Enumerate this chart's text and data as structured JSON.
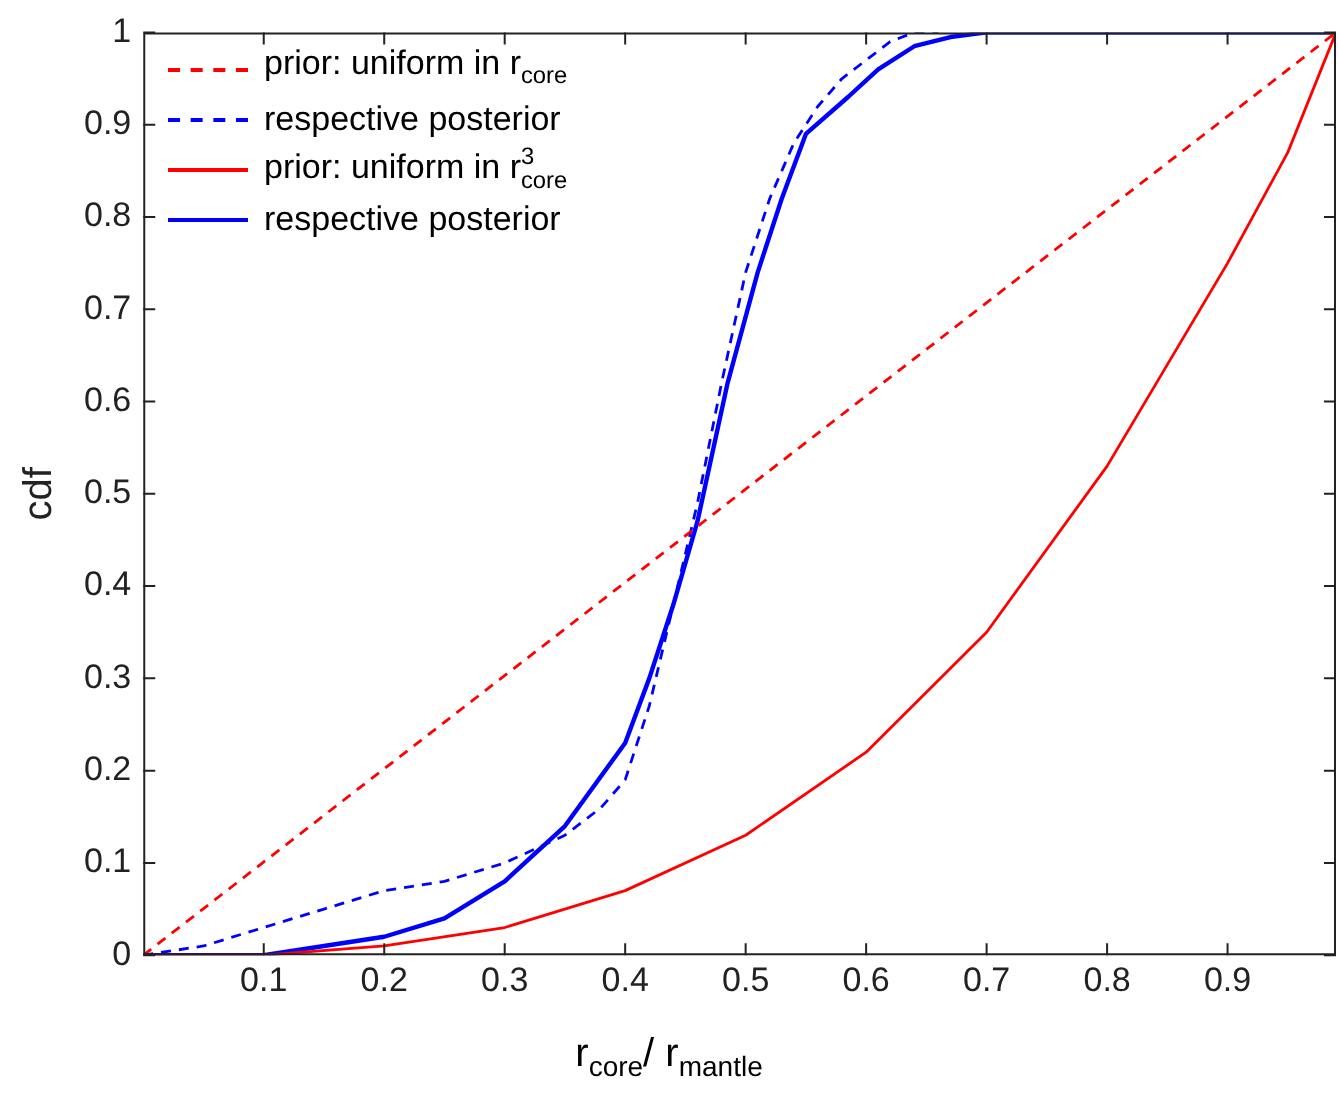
{
  "chart_data": {
    "type": "line",
    "xlabel": "r$_{core}$/ r$_{mantle}$",
    "ylabel": "cdf",
    "xlim": [
      0,
      0.99
    ],
    "ylim": [
      0,
      1
    ],
    "xticks": [
      0.1,
      0.2,
      0.3,
      0.4,
      0.5,
      0.6,
      0.7,
      0.8,
      0.9
    ],
    "yticks": [
      0,
      0.1,
      0.2,
      0.3,
      0.4,
      0.5,
      0.6,
      0.7,
      0.8,
      0.9,
      1
    ],
    "grid": false,
    "legend": "top left",
    "marker": "none",
    "series": [
      {
        "name": "prior: uniform in r$_{core}$",
        "color": "#ff0000",
        "line_style": "dashed",
        "x": [
          0,
          0.99
        ],
        "values": [
          0,
          1
        ]
      },
      {
        "name": "respective posterior",
        "color": "#0000ff",
        "line_style": "dashed",
        "x": [
          0,
          0.05,
          0.1,
          0.15,
          0.2,
          0.25,
          0.3,
          0.35,
          0.38,
          0.4,
          0.42,
          0.44,
          0.46,
          0.48,
          0.5,
          0.52,
          0.54,
          0.56,
          0.58,
          0.6,
          0.62,
          0.64,
          0.66
        ],
        "values": [
          0,
          0.01,
          0.03,
          0.05,
          0.07,
          0.08,
          0.1,
          0.13,
          0.16,
          0.19,
          0.27,
          0.38,
          0.49,
          0.62,
          0.74,
          0.82,
          0.88,
          0.92,
          0.95,
          0.97,
          0.99,
          1,
          1
        ]
      },
      {
        "name": "prior: uniform in r$^{3}$$_{core}$",
        "color": "#ff0000",
        "line_style": "solid",
        "x": [
          0,
          0.1,
          0.2,
          0.3,
          0.4,
          0.5,
          0.6,
          0.7,
          0.8,
          0.9,
          0.95,
          0.99
        ],
        "values": [
          0,
          0,
          0.01,
          0.03,
          0.07,
          0.13,
          0.22,
          0.35,
          0.53,
          0.75,
          0.87,
          1
        ]
      },
      {
        "name": "respective posterior",
        "color": "#0000ff",
        "line_style": "solid",
        "x": [
          0,
          0.1,
          0.15,
          0.2,
          0.25,
          0.3,
          0.35,
          0.4,
          0.42,
          0.44,
          0.46,
          0.485,
          0.51,
          0.53,
          0.55,
          0.585,
          0.61,
          0.64,
          0.67,
          0.7,
          0.99
        ],
        "values": [
          0,
          0,
          0.01,
          0.02,
          0.04,
          0.08,
          0.14,
          0.23,
          0.3,
          0.38,
          0.47,
          0.62,
          0.74,
          0.82,
          0.89,
          0.93,
          0.96,
          0.985,
          0.995,
          1,
          1
        ]
      }
    ]
  }
}
